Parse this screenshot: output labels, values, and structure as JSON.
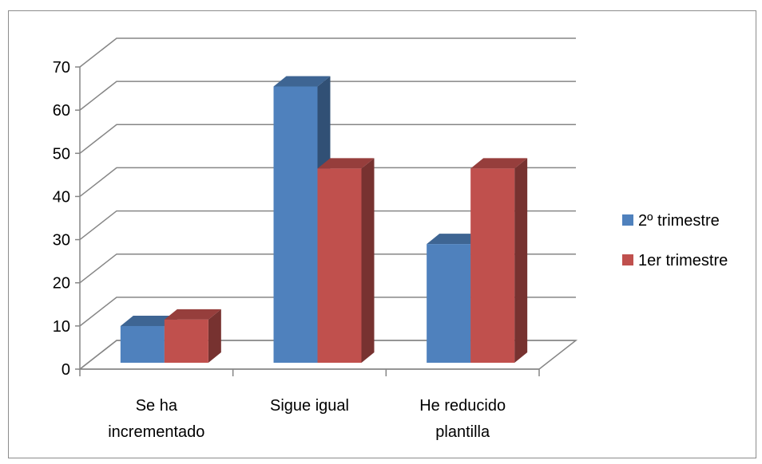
{
  "chart_data": {
    "type": "bar",
    "style": "3d-clustered-column",
    "categories": [
      [
        "Se ha",
        "incrementado"
      ],
      [
        "Sigue igual"
      ],
      [
        "He reducido",
        "plantilla"
      ]
    ],
    "series": [
      {
        "name": "2º trimestre",
        "values": [
          8.5,
          64,
          27.5
        ],
        "color": "#4f81bd"
      },
      {
        "name": "1er trimestre",
        "values": [
          10,
          45,
          45
        ],
        "color": "#c0504d"
      }
    ],
    "yticks": [
      0,
      10,
      20,
      30,
      40,
      50,
      60,
      70
    ],
    "ylim": [
      0,
      70
    ],
    "grid": true,
    "legend_position": "right",
    "title": "",
    "xlabel": "",
    "ylabel": ""
  }
}
